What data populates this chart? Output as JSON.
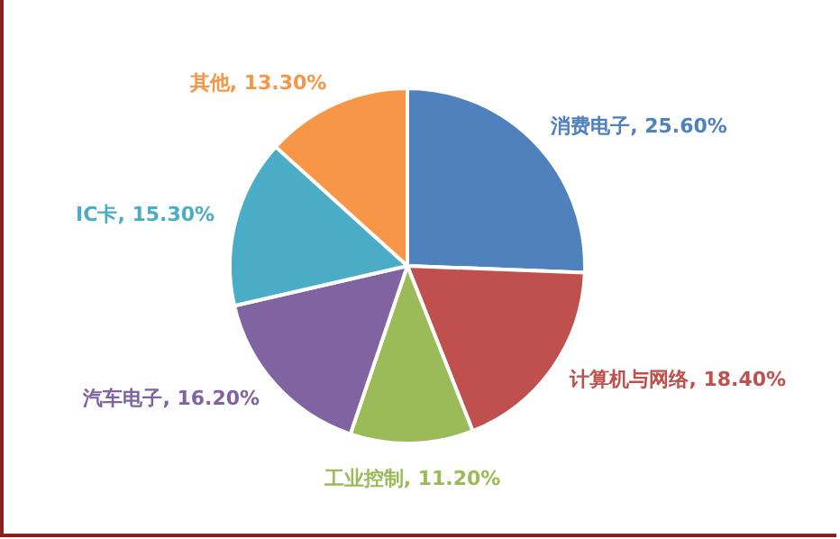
{
  "chart_data": {
    "type": "pie",
    "categories": [
      "消费电子",
      "计算机与网络",
      "工业控制",
      "汽车电子",
      "IC卡",
      "其他"
    ],
    "values": [
      25.6,
      18.4,
      11.2,
      16.2,
      15.3,
      13.3
    ],
    "colors": [
      "#4f81bd",
      "#c0504d",
      "#9bbb59",
      "#8064a2",
      "#4bacc6",
      "#f79646"
    ],
    "value_labels": [
      "25.60%",
      "18.40%",
      "11.20%",
      "16.20%",
      "15.30%",
      "13.30%"
    ],
    "legend": false
  }
}
